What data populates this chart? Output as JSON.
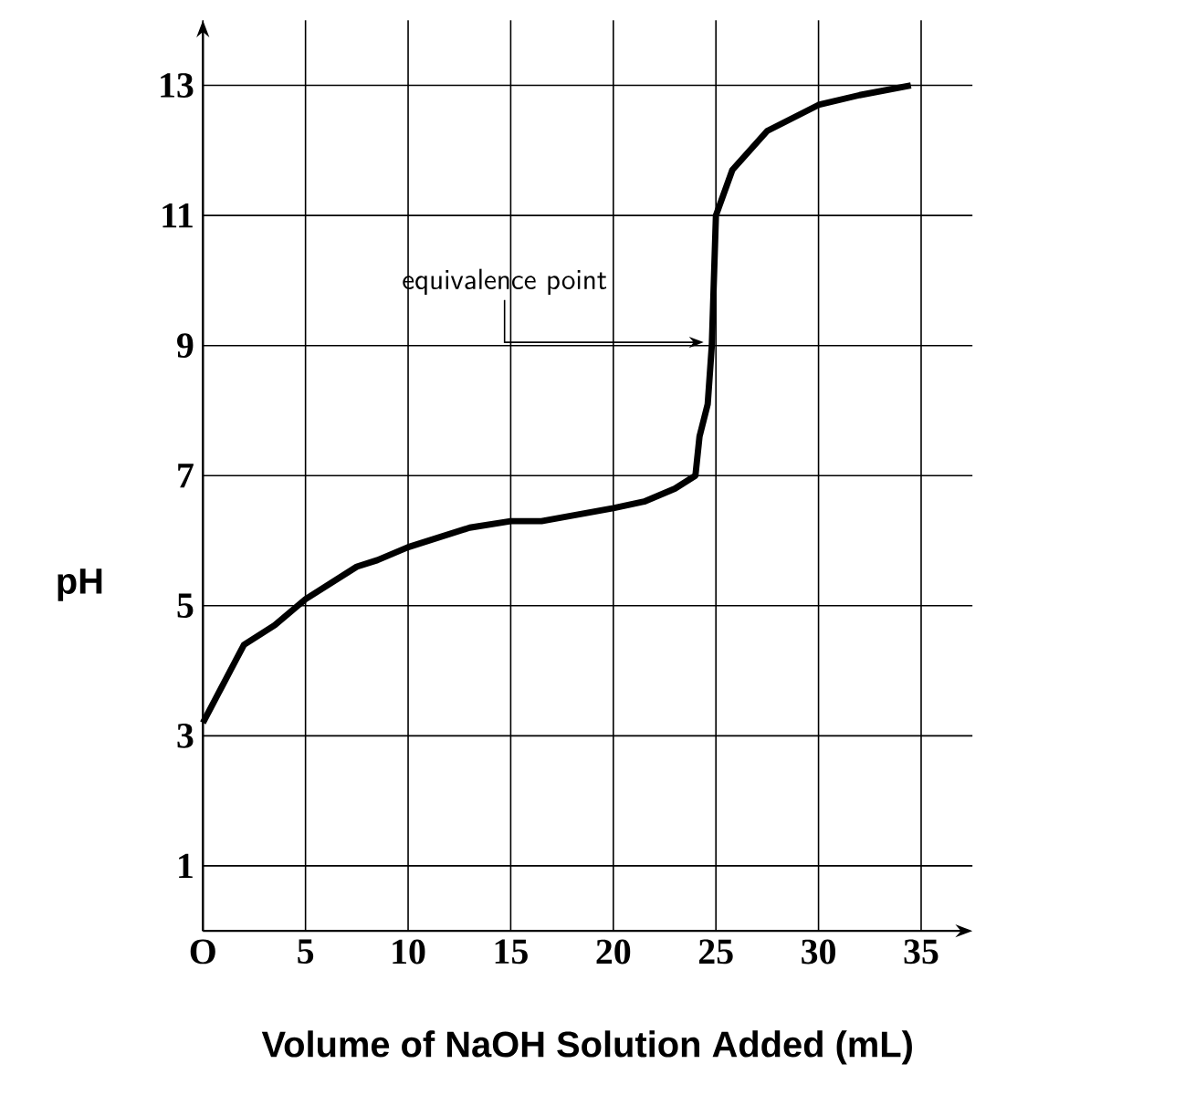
{
  "chart_data": {
    "type": "line",
    "xlabel": "Volume of NaOH Solution Added (mL)",
    "ylabel": "pH",
    "x": [
      0,
      1,
      2,
      3.5,
      5,
      7.5,
      8.5,
      10,
      13,
      15,
      16.5,
      20,
      21.5,
      23,
      24,
      24.2,
      24.6,
      24.8,
      25,
      25.8,
      27.5,
      30,
      32,
      34.5
    ],
    "series": [
      {
        "color": "#000000",
        "values": [
          3.2,
          3.8,
          4.4,
          4.7,
          5.1,
          5.6,
          5.7,
          5.9,
          6.2,
          6.3,
          6.3,
          6.5,
          6.6,
          6.8,
          7.0,
          7.6,
          8.1,
          9.0,
          11.0,
          11.7,
          12.3,
          12.7,
          12.85,
          13.0
        ]
      }
    ],
    "xlim": [
      0,
      37.5
    ],
    "ylim": [
      0,
      14
    ],
    "xticks": [
      {
        "value": 0,
        "label": "O"
      },
      5,
      10,
      15,
      20,
      25,
      30,
      35
    ],
    "yticks": [
      1,
      3,
      5,
      7,
      9,
      11,
      13
    ],
    "grid": true,
    "marker": "none",
    "line_style": "solid",
    "annotations": [
      {
        "text": "equivalence point",
        "x": 24.6,
        "y": 9.05
      }
    ]
  }
}
